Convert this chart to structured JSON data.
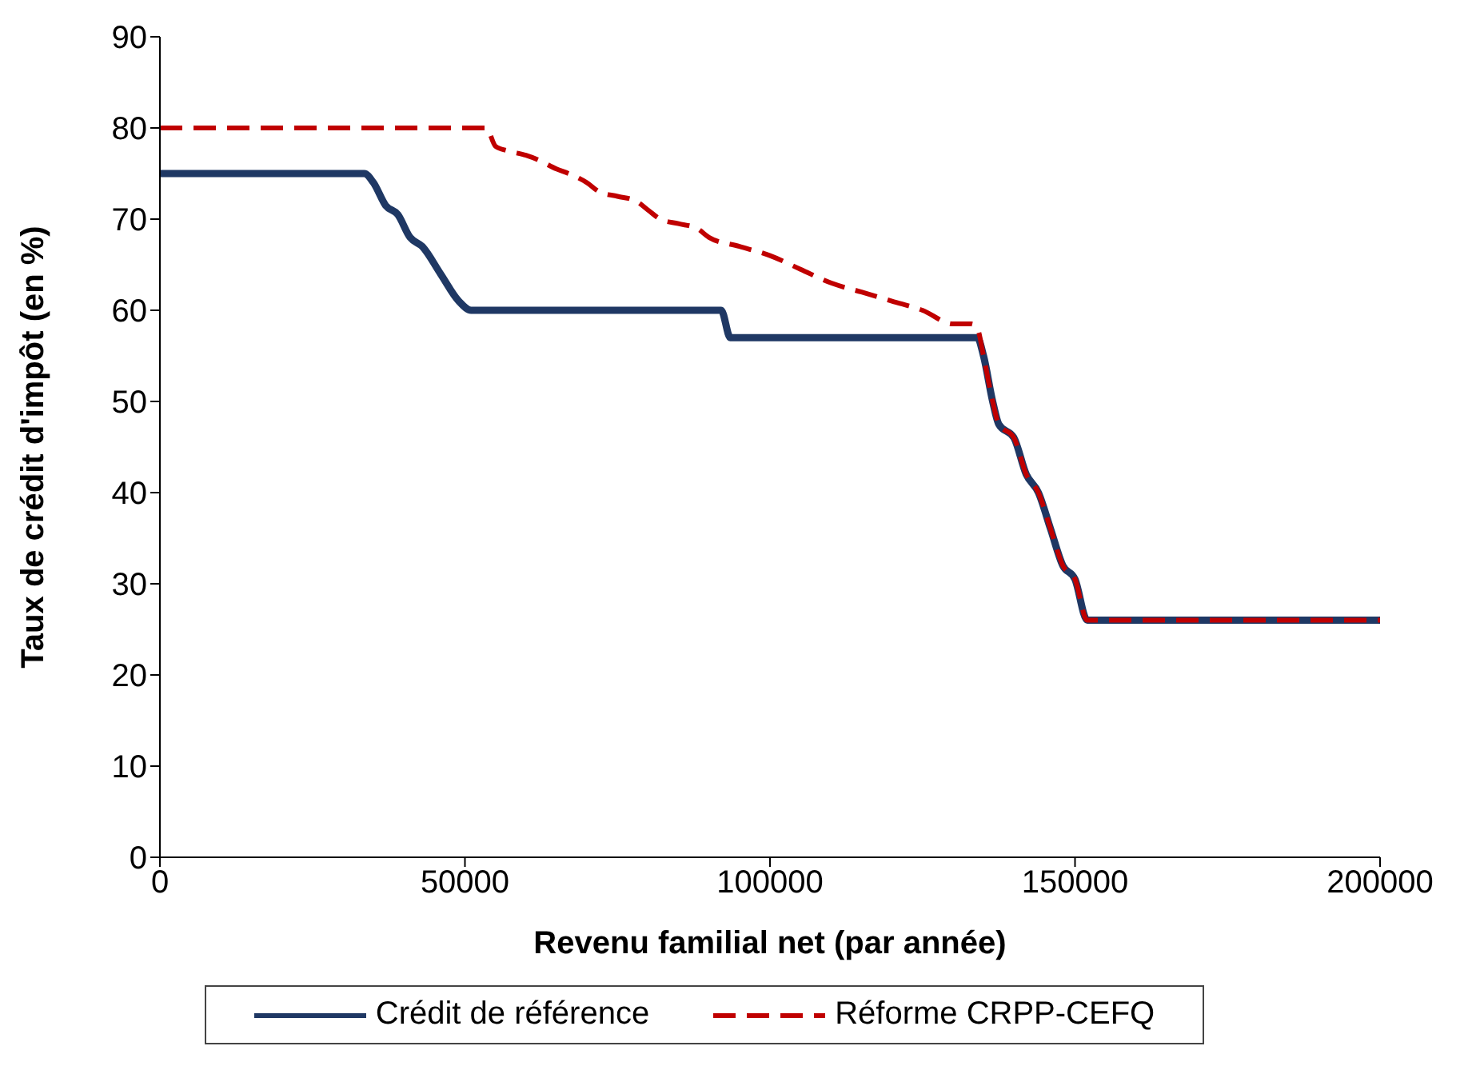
{
  "chart_data": {
    "type": "line",
    "xlabel": "Revenu familial net (par année)",
    "ylabel": "Taux de crédit d'impôt (en %)",
    "xlim": [
      0,
      200000
    ],
    "xticks": [
      0,
      50000,
      100000,
      150000,
      200000
    ],
    "ylim": [
      0,
      90
    ],
    "yticks": [
      0,
      10,
      20,
      30,
      40,
      50,
      60,
      70,
      80,
      90
    ],
    "grid": false,
    "legend": "bottom",
    "marker": "none",
    "series": [
      {
        "name": "Crédit de référence",
        "color": "#1f3864",
        "line_style": "solid",
        "x": [
          0,
          33500,
          35000,
          37000,
          39000,
          41000,
          43000,
          46000,
          49000,
          51000,
          91000,
          92000,
          93500,
          95000,
          134000,
          135000,
          136500,
          137500,
          140000,
          142000,
          144000,
          146000,
          148000,
          150000,
          152000,
          200000
        ],
        "values": [
          75,
          75,
          74,
          71.5,
          70.5,
          68,
          67,
          64,
          61,
          60,
          60,
          60,
          57,
          57,
          57,
          55,
          50,
          47.5,
          46,
          42,
          40,
          36,
          32,
          30.5,
          26,
          26
        ]
      },
      {
        "name": "Réforme CRPP-CEFQ",
        "color": "#c00000",
        "line_style": "dashed",
        "x": [
          0,
          53500,
          55000,
          57000,
          60000,
          62000,
          65000,
          67000,
          70000,
          72000,
          75000,
          78000,
          80000,
          82000,
          85000,
          88000,
          90000,
          95000,
          100000,
          105000,
          110000,
          115000,
          120000,
          125000,
          130000,
          133000,
          134000,
          135000,
          136500,
          137500,
          140000,
          142000,
          144000,
          146000,
          148000,
          150000,
          152000,
          200000
        ],
        "values": [
          80,
          80,
          78,
          77.5,
          77,
          76.5,
          75.5,
          75,
          74,
          73,
          72.5,
          72,
          71,
          70,
          69.5,
          69,
          68,
          67,
          66,
          64.5,
          63,
          62,
          61,
          60,
          58.5,
          58.5,
          58,
          55,
          50,
          47.5,
          46,
          42,
          40,
          36,
          32,
          30.5,
          26,
          26
        ]
      }
    ]
  }
}
